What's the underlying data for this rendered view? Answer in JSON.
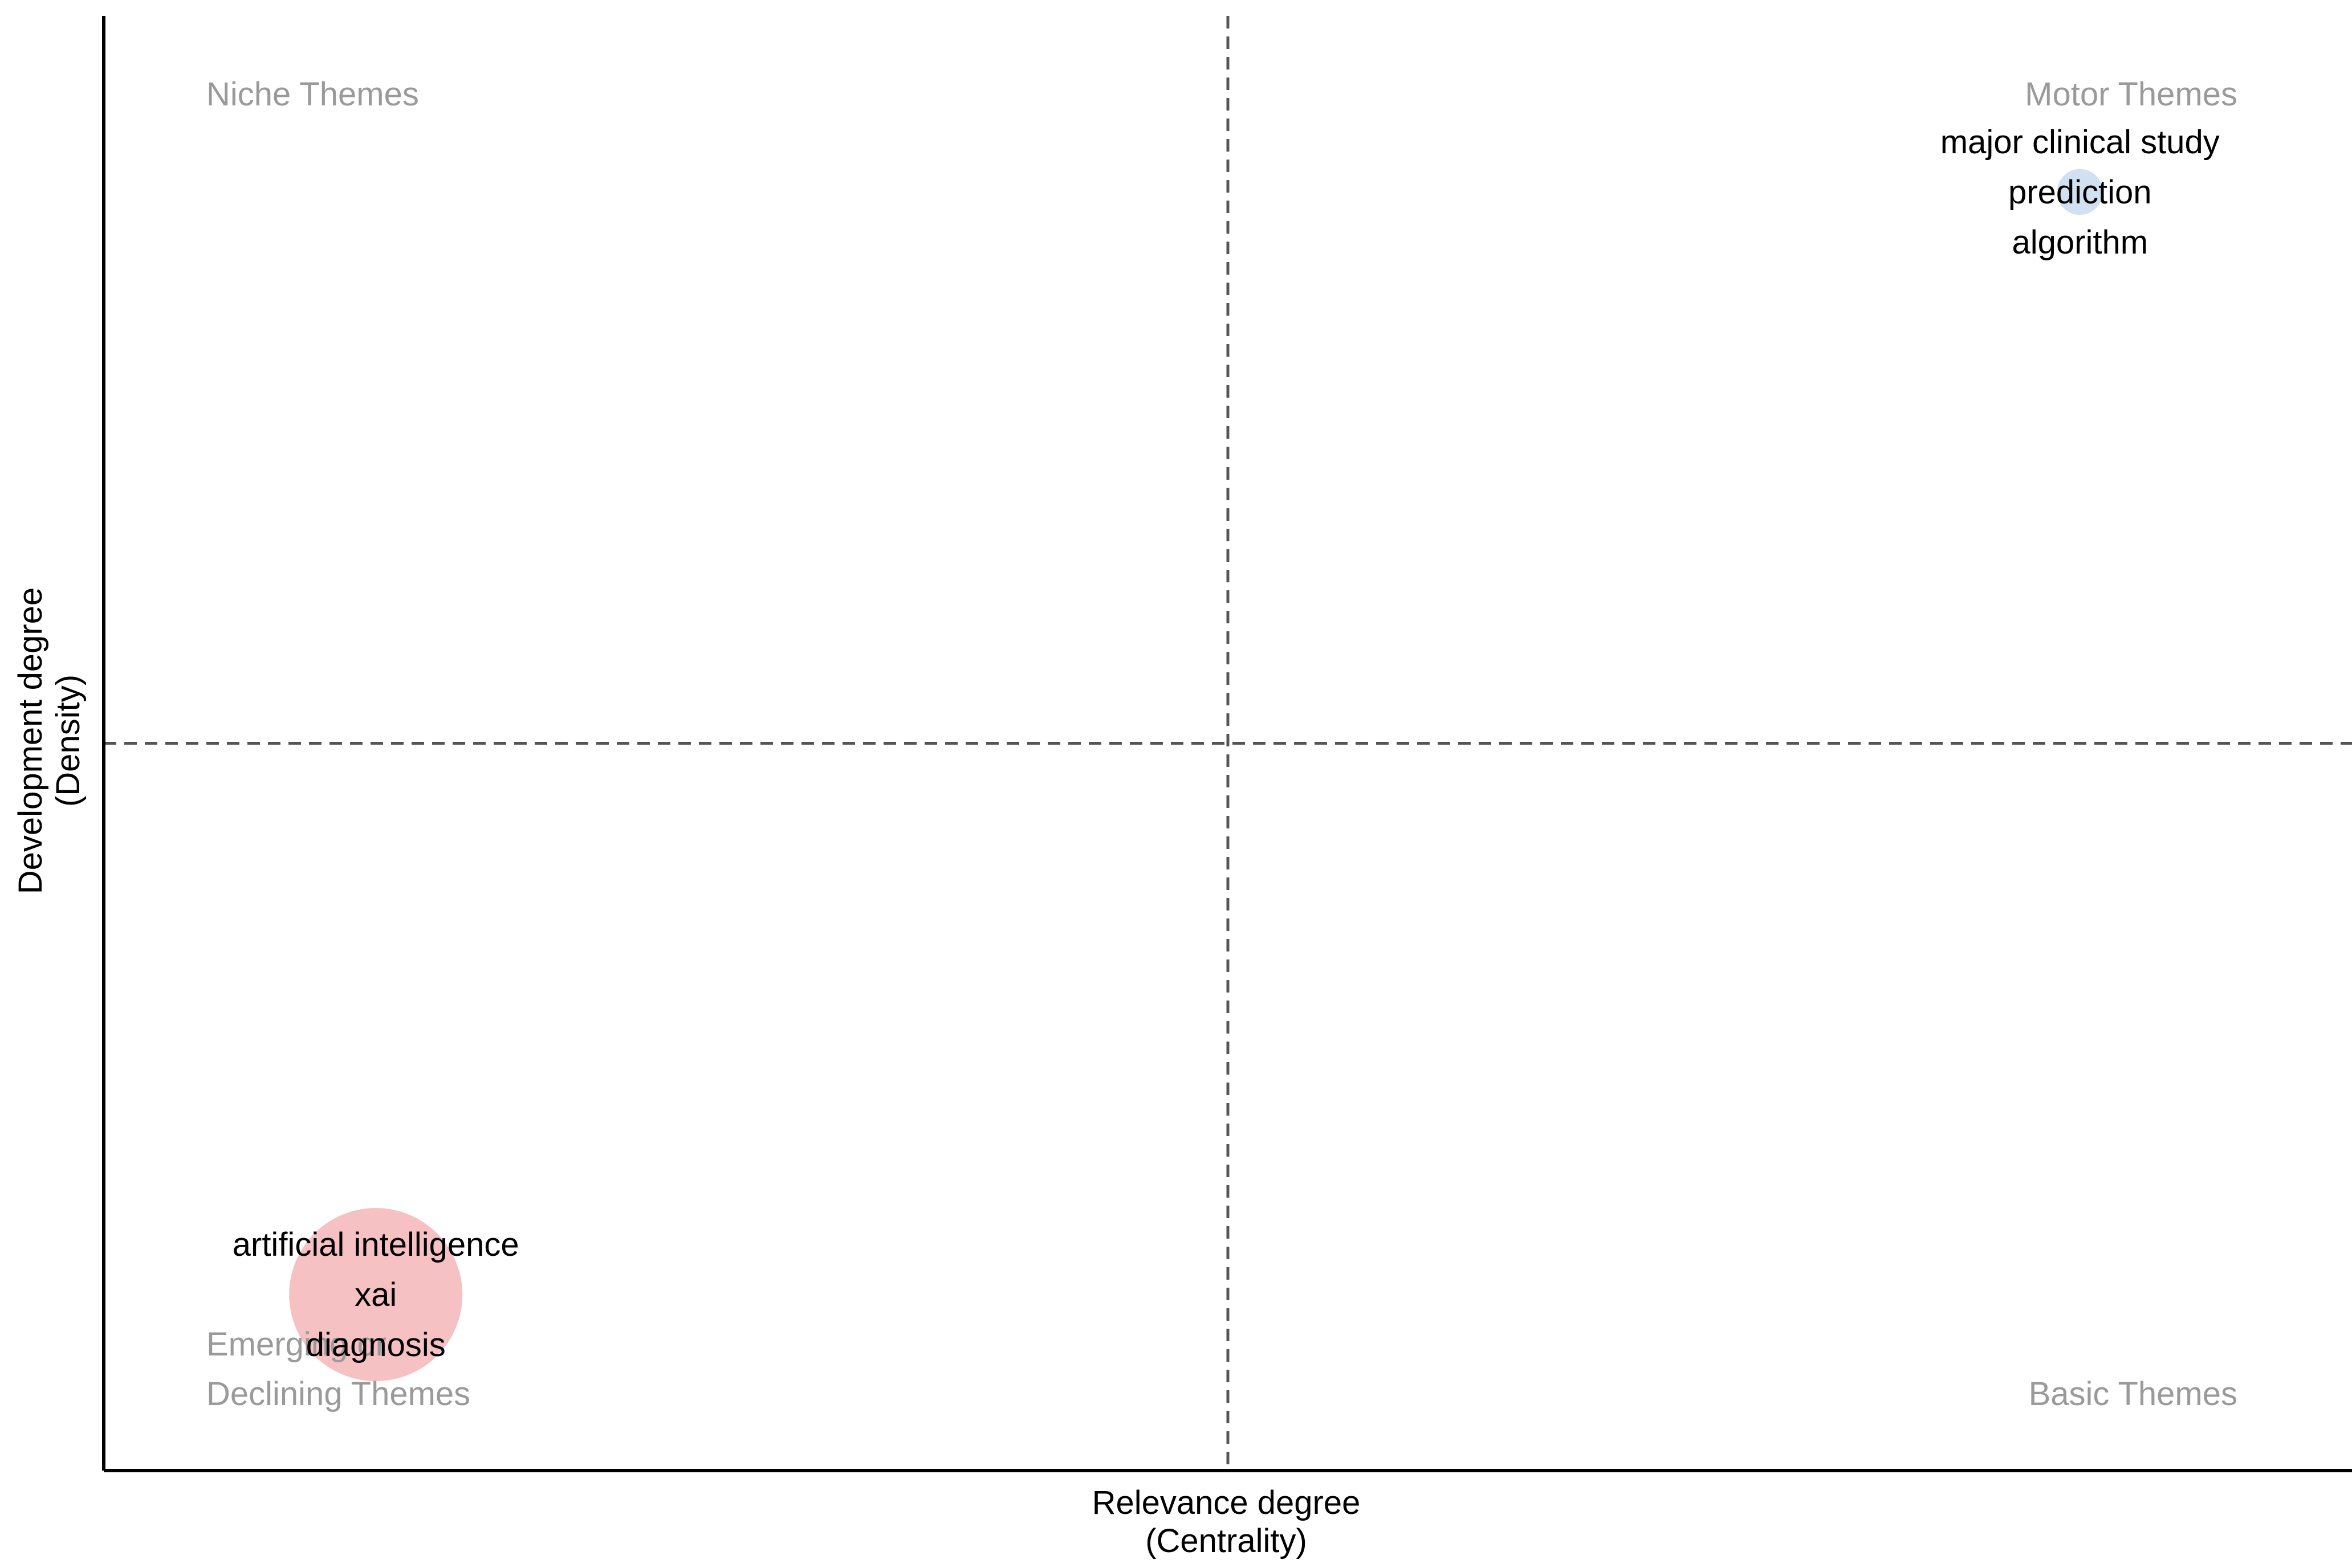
{
  "chart_data": {
    "type": "scatter",
    "subtype": "thematic map (bubble)",
    "xlabel": [
      "Relevance degree",
      "(Centrality)"
    ],
    "ylabel": [
      "Development degree",
      "(Density)"
    ],
    "xlim": [
      0,
      1
    ],
    "ylim": [
      0,
      1
    ],
    "reference_lines": {
      "x": 0.5,
      "y": 0.5,
      "style": "dashed",
      "color": "#555555"
    },
    "grid": false,
    "legend": "none",
    "quadrant_labels": {
      "top_left": "Niche Themes",
      "top_right": "Motor Themes",
      "bottom_left": [
        "Emerging or",
        "Declining Themes"
      ],
      "bottom_right": "Basic Themes"
    },
    "quadrant_label_color": "#9a9a9a",
    "clusters": [
      {
        "labels": [
          "artificial intelligence",
          "xai",
          "diagnosis"
        ],
        "x": 0.121,
        "y": 0.121,
        "relative_size": 1.0,
        "color": "#f4b6b8"
      },
      {
        "labels": [
          "major clinical study",
          "prediction",
          "algorithm"
        ],
        "x": 0.879,
        "y": 0.879,
        "relative_size": 0.07,
        "color": "#c9dcef"
      }
    ]
  }
}
